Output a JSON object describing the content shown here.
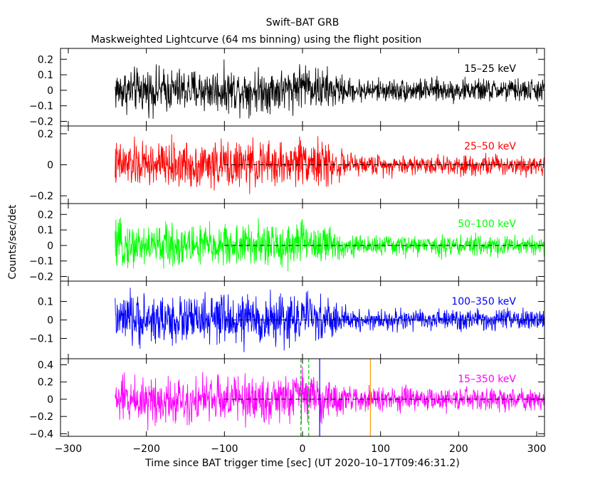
{
  "title": "Swift–BAT GRB",
  "subtitle": "Maskweighted Lightcurve (64 ms binning) using the flight position",
  "xlabel": "Time since BAT trigger time [sec] (UT 2020–10–17T09:46:31.2)",
  "ylabel": "Counts/sec/det",
  "chart_data": {
    "type": "line",
    "title": "Swift–BAT GRB",
    "subtitle": "Maskweighted Lightcurve (64 ms binning) using the flight position",
    "xlabel": "Time since BAT trigger time [sec] (UT 2020–10–17T09:46:31.2)",
    "ylabel": "Counts/sec/det",
    "xlim": [
      -310,
      310
    ],
    "xticks": [
      -300,
      -200,
      -100,
      0,
      100,
      200,
      300
    ],
    "xtick_labels": [
      "−300",
      "−200",
      "−100",
      "0",
      "100",
      "200",
      "300"
    ],
    "data_start": -240,
    "data_end": 310,
    "zero_line_from": -100,
    "panels": [
      {
        "name": "15–25 keV",
        "color": "#000000",
        "ylim": [
          -0.23,
          0.27
        ],
        "yticks": [
          -0.2,
          -0.1,
          0,
          0.1,
          0.2
        ],
        "ytick_labels": [
          "−0.2",
          "−0.1",
          "0",
          "0.1",
          "0.2"
        ],
        "zero_line": false,
        "noise_before": 0.085,
        "noise_after": 0.045,
        "peak": 0.07
      },
      {
        "name": "25–50 keV",
        "color": "#ff0000",
        "ylim": [
          -0.25,
          0.25
        ],
        "yticks": [
          -0.2,
          0,
          0.2
        ],
        "ytick_labels": [
          "−0.2",
          "0",
          "0.2"
        ],
        "zero_line": true,
        "noise_before": 0.09,
        "noise_after": 0.04,
        "peak": 0.06
      },
      {
        "name": "50–100 keV",
        "color": "#00ff00",
        "ylim": [
          -0.23,
          0.27
        ],
        "yticks": [
          -0.2,
          -0.1,
          0,
          0.1,
          0.2
        ],
        "ytick_labels": [
          "−0.2",
          "−0.1",
          "0",
          "0.1",
          "0.2"
        ],
        "zero_line": true,
        "noise_before": 0.085,
        "noise_after": 0.04,
        "peak": 0.05
      },
      {
        "name": "100–350 keV",
        "color": "#0000ff",
        "ylim": [
          -0.21,
          0.21
        ],
        "yticks": [
          -0.1,
          0,
          0.1
        ],
        "ytick_labels": [
          "−0.1",
          "0",
          "0.1"
        ],
        "zero_line": true,
        "noise_before": 0.08,
        "noise_after": 0.035,
        "peak": 0.03
      },
      {
        "name": "15–350 keV",
        "color": "#ff00ff",
        "ylim": [
          -0.43,
          0.47
        ],
        "yticks": [
          -0.4,
          -0.2,
          0,
          0.2,
          0.4
        ],
        "ytick_labels": [
          "−0.4",
          "−0.2",
          "0",
          "0.2",
          "0.4"
        ],
        "zero_line": true,
        "noise_before": 0.17,
        "noise_after": 0.08,
        "peak": 0.12
      }
    ],
    "markers": [
      {
        "x": -2,
        "color": "#00aa00",
        "style": "dashed"
      },
      {
        "x": 8,
        "color": "#00cc00",
        "style": "dashed"
      },
      {
        "x": 22,
        "color": "#0000ff",
        "style": "solid"
      },
      {
        "x": 87,
        "color": "#ff9900",
        "style": "solid"
      }
    ],
    "grid": false,
    "legend": "per-panel label, top-right"
  }
}
